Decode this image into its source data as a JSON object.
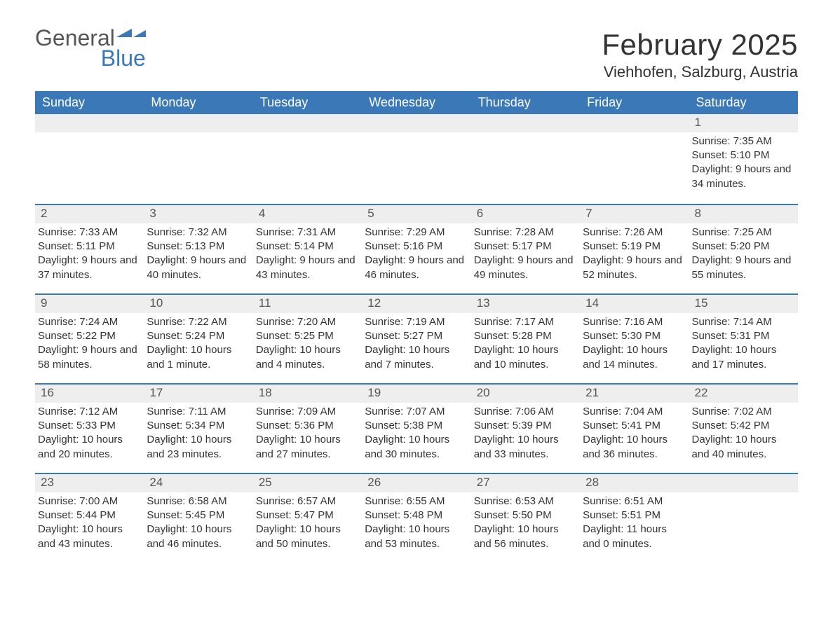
{
  "brand": {
    "general": "General",
    "blue": "Blue",
    "icon_color": "#3a78b8",
    "text_color_general": "#555555",
    "text_color_blue": "#3a78b8"
  },
  "title": {
    "month_year": "February 2025",
    "location": "Viehhofen, Salzburg, Austria"
  },
  "colors": {
    "header_bg": "#3a78b8",
    "header_text": "#ffffff",
    "daynum_bg": "#eeeeee",
    "daynum_text": "#555555",
    "body_text": "#333333",
    "border": "#3a78b8",
    "page_bg": "#ffffff"
  },
  "weekdays": [
    "Sunday",
    "Monday",
    "Tuesday",
    "Wednesday",
    "Thursday",
    "Friday",
    "Saturday"
  ],
  "weeks": [
    [
      {
        "day": "",
        "sunrise": "",
        "sunset": "",
        "daylight": ""
      },
      {
        "day": "",
        "sunrise": "",
        "sunset": "",
        "daylight": ""
      },
      {
        "day": "",
        "sunrise": "",
        "sunset": "",
        "daylight": ""
      },
      {
        "day": "",
        "sunrise": "",
        "sunset": "",
        "daylight": ""
      },
      {
        "day": "",
        "sunrise": "",
        "sunset": "",
        "daylight": ""
      },
      {
        "day": "",
        "sunrise": "",
        "sunset": "",
        "daylight": ""
      },
      {
        "day": "1",
        "sunrise": "Sunrise: 7:35 AM",
        "sunset": "Sunset: 5:10 PM",
        "daylight": "Daylight: 9 hours and 34 minutes."
      }
    ],
    [
      {
        "day": "2",
        "sunrise": "Sunrise: 7:33 AM",
        "sunset": "Sunset: 5:11 PM",
        "daylight": "Daylight: 9 hours and 37 minutes."
      },
      {
        "day": "3",
        "sunrise": "Sunrise: 7:32 AM",
        "sunset": "Sunset: 5:13 PM",
        "daylight": "Daylight: 9 hours and 40 minutes."
      },
      {
        "day": "4",
        "sunrise": "Sunrise: 7:31 AM",
        "sunset": "Sunset: 5:14 PM",
        "daylight": "Daylight: 9 hours and 43 minutes."
      },
      {
        "day": "5",
        "sunrise": "Sunrise: 7:29 AM",
        "sunset": "Sunset: 5:16 PM",
        "daylight": "Daylight: 9 hours and 46 minutes."
      },
      {
        "day": "6",
        "sunrise": "Sunrise: 7:28 AM",
        "sunset": "Sunset: 5:17 PM",
        "daylight": "Daylight: 9 hours and 49 minutes."
      },
      {
        "day": "7",
        "sunrise": "Sunrise: 7:26 AM",
        "sunset": "Sunset: 5:19 PM",
        "daylight": "Daylight: 9 hours and 52 minutes."
      },
      {
        "day": "8",
        "sunrise": "Sunrise: 7:25 AM",
        "sunset": "Sunset: 5:20 PM",
        "daylight": "Daylight: 9 hours and 55 minutes."
      }
    ],
    [
      {
        "day": "9",
        "sunrise": "Sunrise: 7:24 AM",
        "sunset": "Sunset: 5:22 PM",
        "daylight": "Daylight: 9 hours and 58 minutes."
      },
      {
        "day": "10",
        "sunrise": "Sunrise: 7:22 AM",
        "sunset": "Sunset: 5:24 PM",
        "daylight": "Daylight: 10 hours and 1 minute."
      },
      {
        "day": "11",
        "sunrise": "Sunrise: 7:20 AM",
        "sunset": "Sunset: 5:25 PM",
        "daylight": "Daylight: 10 hours and 4 minutes."
      },
      {
        "day": "12",
        "sunrise": "Sunrise: 7:19 AM",
        "sunset": "Sunset: 5:27 PM",
        "daylight": "Daylight: 10 hours and 7 minutes."
      },
      {
        "day": "13",
        "sunrise": "Sunrise: 7:17 AM",
        "sunset": "Sunset: 5:28 PM",
        "daylight": "Daylight: 10 hours and 10 minutes."
      },
      {
        "day": "14",
        "sunrise": "Sunrise: 7:16 AM",
        "sunset": "Sunset: 5:30 PM",
        "daylight": "Daylight: 10 hours and 14 minutes."
      },
      {
        "day": "15",
        "sunrise": "Sunrise: 7:14 AM",
        "sunset": "Sunset: 5:31 PM",
        "daylight": "Daylight: 10 hours and 17 minutes."
      }
    ],
    [
      {
        "day": "16",
        "sunrise": "Sunrise: 7:12 AM",
        "sunset": "Sunset: 5:33 PM",
        "daylight": "Daylight: 10 hours and 20 minutes."
      },
      {
        "day": "17",
        "sunrise": "Sunrise: 7:11 AM",
        "sunset": "Sunset: 5:34 PM",
        "daylight": "Daylight: 10 hours and 23 minutes."
      },
      {
        "day": "18",
        "sunrise": "Sunrise: 7:09 AM",
        "sunset": "Sunset: 5:36 PM",
        "daylight": "Daylight: 10 hours and 27 minutes."
      },
      {
        "day": "19",
        "sunrise": "Sunrise: 7:07 AM",
        "sunset": "Sunset: 5:38 PM",
        "daylight": "Daylight: 10 hours and 30 minutes."
      },
      {
        "day": "20",
        "sunrise": "Sunrise: 7:06 AM",
        "sunset": "Sunset: 5:39 PM",
        "daylight": "Daylight: 10 hours and 33 minutes."
      },
      {
        "day": "21",
        "sunrise": "Sunrise: 7:04 AM",
        "sunset": "Sunset: 5:41 PM",
        "daylight": "Daylight: 10 hours and 36 minutes."
      },
      {
        "day": "22",
        "sunrise": "Sunrise: 7:02 AM",
        "sunset": "Sunset: 5:42 PM",
        "daylight": "Daylight: 10 hours and 40 minutes."
      }
    ],
    [
      {
        "day": "23",
        "sunrise": "Sunrise: 7:00 AM",
        "sunset": "Sunset: 5:44 PM",
        "daylight": "Daylight: 10 hours and 43 minutes."
      },
      {
        "day": "24",
        "sunrise": "Sunrise: 6:58 AM",
        "sunset": "Sunset: 5:45 PM",
        "daylight": "Daylight: 10 hours and 46 minutes."
      },
      {
        "day": "25",
        "sunrise": "Sunrise: 6:57 AM",
        "sunset": "Sunset: 5:47 PM",
        "daylight": "Daylight: 10 hours and 50 minutes."
      },
      {
        "day": "26",
        "sunrise": "Sunrise: 6:55 AM",
        "sunset": "Sunset: 5:48 PM",
        "daylight": "Daylight: 10 hours and 53 minutes."
      },
      {
        "day": "27",
        "sunrise": "Sunrise: 6:53 AM",
        "sunset": "Sunset: 5:50 PM",
        "daylight": "Daylight: 10 hours and 56 minutes."
      },
      {
        "day": "28",
        "sunrise": "Sunrise: 6:51 AM",
        "sunset": "Sunset: 5:51 PM",
        "daylight": "Daylight: 11 hours and 0 minutes."
      },
      {
        "day": "",
        "sunrise": "",
        "sunset": "",
        "daylight": ""
      }
    ]
  ]
}
